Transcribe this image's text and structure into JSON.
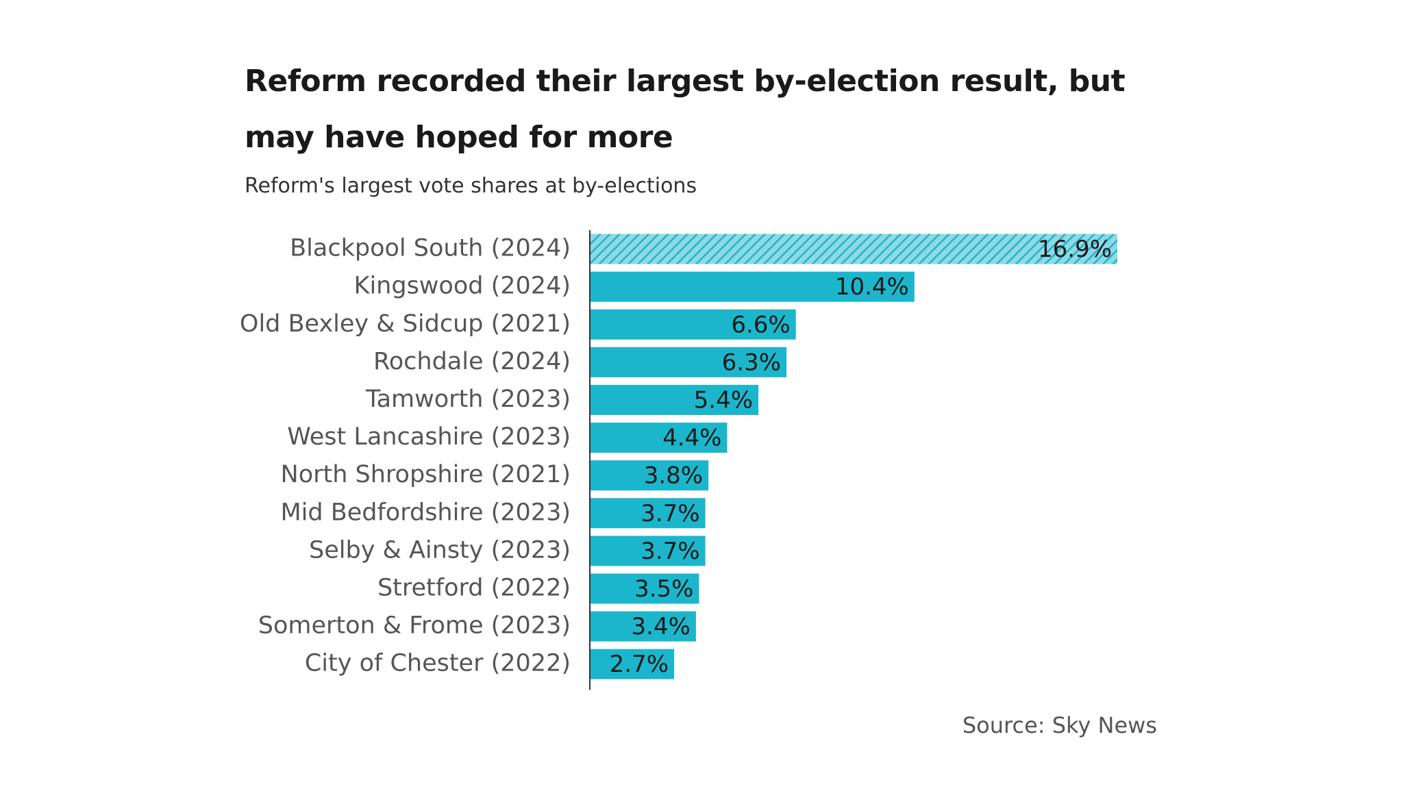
{
  "chart_data": {
    "type": "bar",
    "orientation": "horizontal",
    "title": "Reform recorded their largest by-election result, but may have hoped for more",
    "subtitle": "Reform's largest vote shares at by-elections",
    "source": "Source: Sky News",
    "categories": [
      "Blackpool South (2024)",
      "Kingswood (2024)",
      "Old Bexley & Sidcup (2021)",
      "Rochdale (2024)",
      "Tamworth (2023)",
      "West Lancashire (2023)",
      "North Shropshire (2021)",
      "Mid Bedfordshire (2023)",
      "Selby & Ainsty (2023)",
      "Stretford (2022)",
      "Somerton & Frome (2023)",
      "City of Chester (2022)"
    ],
    "values": [
      16.9,
      10.4,
      6.6,
      6.3,
      5.4,
      4.4,
      3.8,
      3.7,
      3.7,
      3.5,
      3.4,
      2.7
    ],
    "value_labels": [
      "16.9%",
      "10.4%",
      "6.6%",
      "6.3%",
      "5.4%",
      "4.4%",
      "3.8%",
      "3.7%",
      "3.7%",
      "3.5%",
      "3.4%",
      "2.7%"
    ],
    "color": "#1cb6cc",
    "hatched_index": 0
  }
}
